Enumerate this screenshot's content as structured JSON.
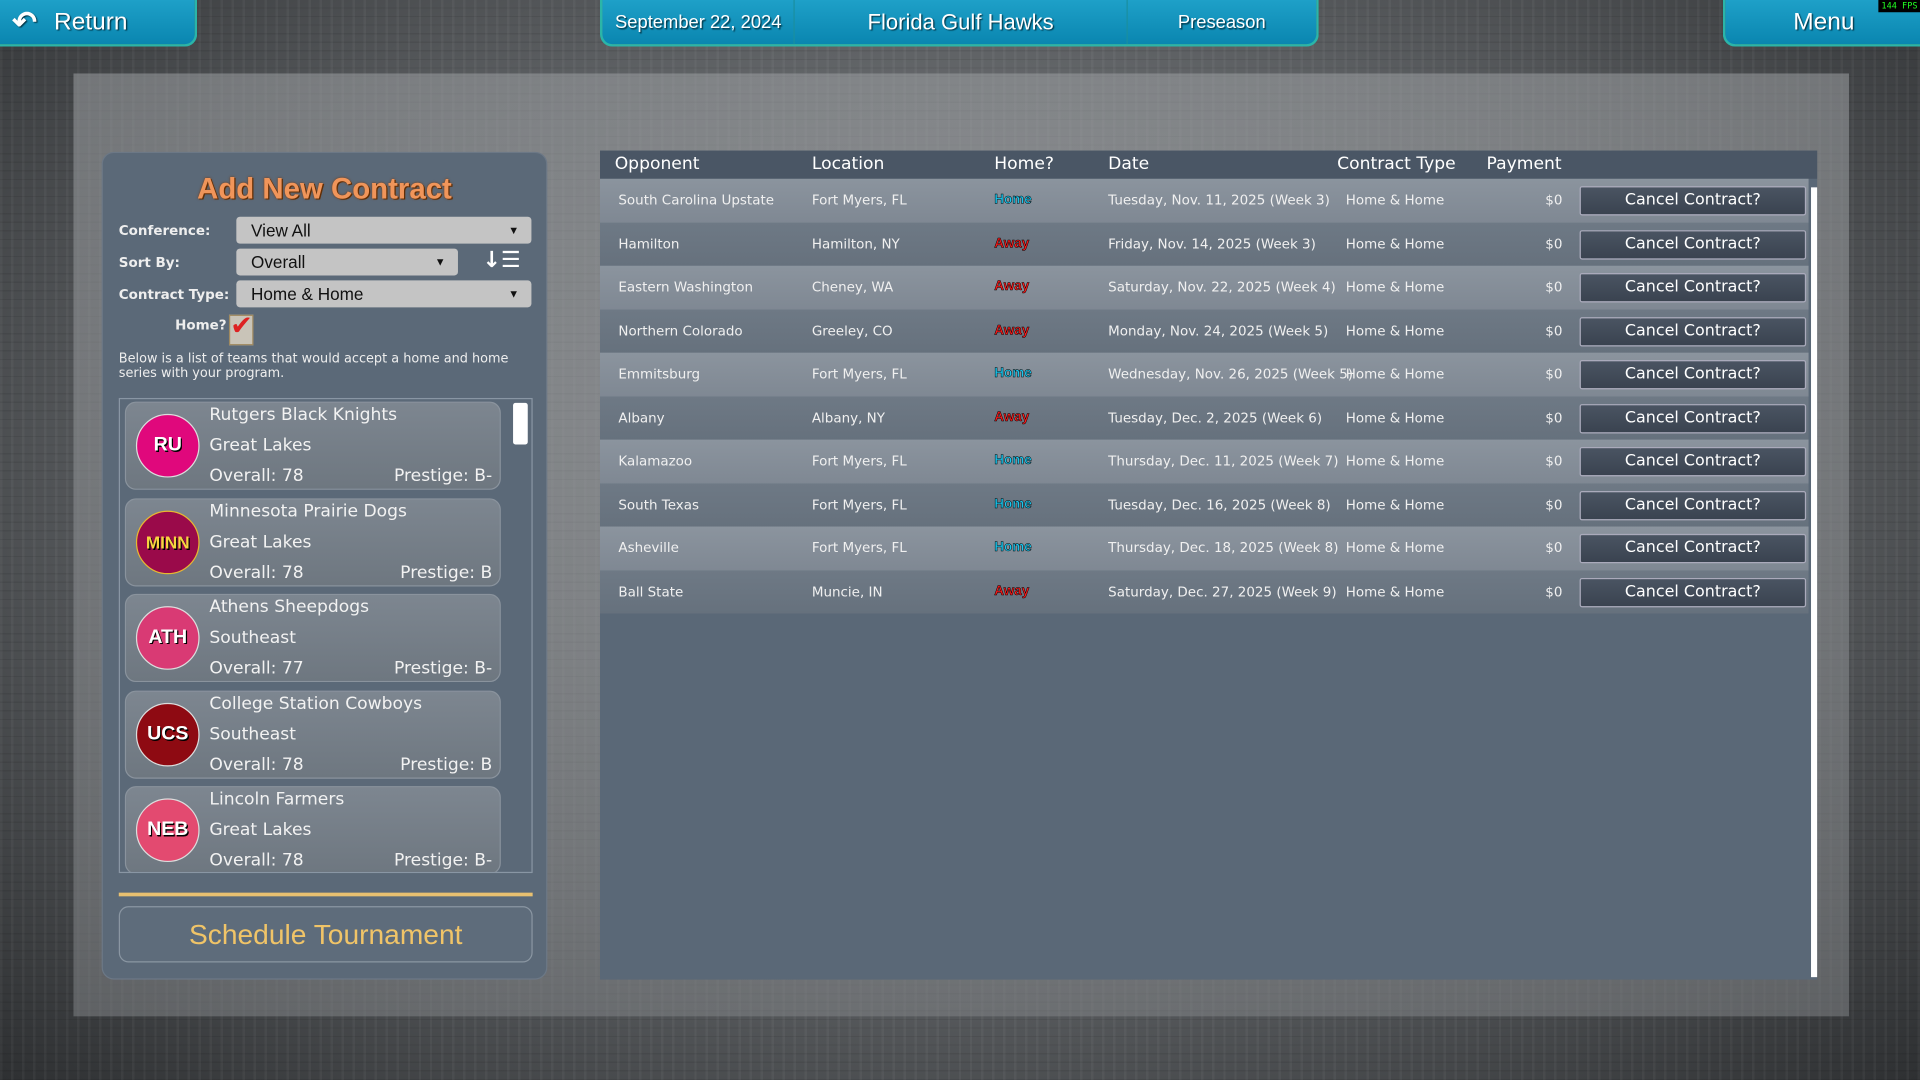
{
  "header": {
    "return_label": "Return",
    "date": "September 22, 2024",
    "team": "Florida Gulf Hawks",
    "phase": "Preseason",
    "menu_label": "Menu",
    "fps": "144 FPS"
  },
  "panel": {
    "title": "Add New Contract",
    "conference_label": "Conference:",
    "conference_value": "View All",
    "sort_label": "Sort By:",
    "sort_value": "Overall",
    "contract_type_label": "Contract Type:",
    "contract_type_value": "Home & Home",
    "home_label": "Home?",
    "home_checked": true,
    "note": "Below is a list of teams that would accept a home and home series with your program.",
    "teams": [
      {
        "abbr": "RU",
        "name": "Rutgers Black Knights",
        "conference": "Great Lakes",
        "overall": "Overall: 78",
        "prestige": "Prestige: B-",
        "color": "#e0087c",
        "text_color": "#ffffff"
      },
      {
        "abbr": "MINN",
        "name": "Minnesota Prairie Dogs",
        "conference": "Great Lakes",
        "overall": "Overall: 78",
        "prestige": "Prestige: B",
        "color": "#9a0a4a",
        "text_color": "#f8d440"
      },
      {
        "abbr": "ATH",
        "name": "Athens Sheepdogs",
        "conference": "Southeast",
        "overall": "Overall: 77",
        "prestige": "Prestige: B-",
        "color": "#d93a74",
        "text_color": "#ffffff"
      },
      {
        "abbr": "UCS",
        "name": "College Station Cowboys",
        "conference": "Southeast",
        "overall": "Overall: 78",
        "prestige": "Prestige: B",
        "color": "#8e0a12",
        "text_color": "#ffffff"
      },
      {
        "abbr": "NEB",
        "name": "Lincoln Farmers",
        "conference": "Great Lakes",
        "overall": "Overall: 78",
        "prestige": "Prestige: B-",
        "color": "#e34a70",
        "text_color": "#ffffff"
      }
    ],
    "schedule_tournament_label": "Schedule Tournament"
  },
  "table": {
    "columns": [
      "Opponent",
      "Location",
      "Home?",
      "Date",
      "Contract Type",
      "Payment"
    ],
    "home_color": "#19c8f0",
    "away_color": "#ff1a1a",
    "cancel_label": "Cancel Contract?",
    "rows": [
      {
        "opponent": "South Carolina Upstate",
        "location": "Fort Myers, FL",
        "home": "Home",
        "date": "Tuesday, Nov. 11, 2025 (Week 3)",
        "type": "Home & Home",
        "payment": "$0"
      },
      {
        "opponent": "Hamilton",
        "location": "Hamilton, NY",
        "home": "Away",
        "date": "Friday, Nov. 14, 2025 (Week 3)",
        "type": "Home & Home",
        "payment": "$0"
      },
      {
        "opponent": "Eastern Washington",
        "location": "Cheney, WA",
        "home": "Away",
        "date": "Saturday, Nov. 22, 2025 (Week 4)",
        "type": "Home & Home",
        "payment": "$0"
      },
      {
        "opponent": "Northern Colorado",
        "location": "Greeley, CO",
        "home": "Away",
        "date": "Monday, Nov. 24, 2025 (Week 5)",
        "type": "Home & Home",
        "payment": "$0"
      },
      {
        "opponent": "Emmitsburg",
        "location": "Fort Myers, FL",
        "home": "Home",
        "date": "Wednesday, Nov. 26, 2025 (Week 5)",
        "type": "Home & Home",
        "payment": "$0"
      },
      {
        "opponent": "Albany",
        "location": "Albany, NY",
        "home": "Away",
        "date": "Tuesday, Dec. 2, 2025 (Week 6)",
        "type": "Home & Home",
        "payment": "$0"
      },
      {
        "opponent": "Kalamazoo",
        "location": "Fort Myers, FL",
        "home": "Home",
        "date": "Thursday, Dec. 11, 2025 (Week 7)",
        "type": "Home & Home",
        "payment": "$0"
      },
      {
        "opponent": "South Texas",
        "location": "Fort Myers, FL",
        "home": "Home",
        "date": "Tuesday, Dec. 16, 2025 (Week 8)",
        "type": "Home & Home",
        "payment": "$0"
      },
      {
        "opponent": "Asheville",
        "location": "Fort Myers, FL",
        "home": "Home",
        "date": "Thursday, Dec. 18, 2025 (Week 8)",
        "type": "Home & Home",
        "payment": "$0"
      },
      {
        "opponent": "Ball State",
        "location": "Muncie, IN",
        "home": "Away",
        "date": "Saturday, Dec. 27, 2025 (Week 9)",
        "type": "Home & Home",
        "payment": "$0"
      }
    ]
  }
}
